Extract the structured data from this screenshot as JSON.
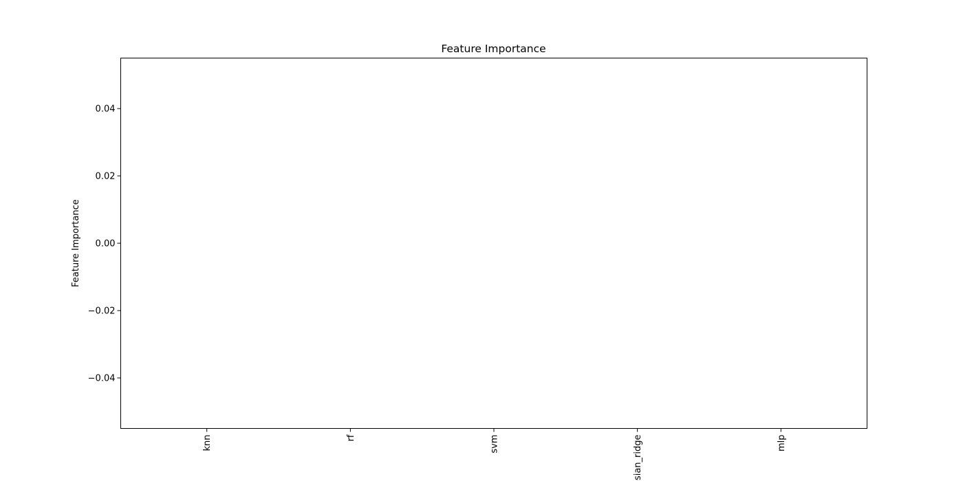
{
  "chart_data": {
    "type": "bar",
    "title": "Feature Importance",
    "xlabel": "",
    "ylabel": "Feature Importance",
    "categories": [
      "knn",
      "rf",
      "svm",
      "bayesian_ridge",
      "mlp"
    ],
    "values": [
      0,
      0,
      0,
      0,
      0
    ],
    "ylim": [
      -0.055,
      0.055
    ],
    "yticks": [
      -0.04,
      -0.02,
      0.0,
      0.02,
      0.04
    ],
    "ytick_labels": [
      "−0.04",
      "−0.02",
      "0.00",
      "0.02",
      "0.04"
    ],
    "grid": false,
    "legend": "none",
    "bar_color": "#1f77b4",
    "x_tick_rotation": "vertical"
  }
}
